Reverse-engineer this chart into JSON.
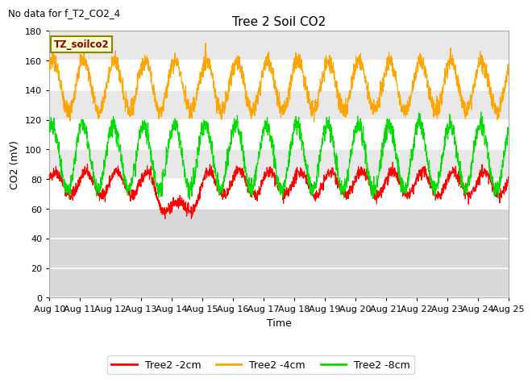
{
  "title": "Tree 2 Soil CO2",
  "no_data_text": "No data for f_T2_CO2_4",
  "tz_label": "TZ_soilco2",
  "xlabel": "Time",
  "ylabel": "CO2 (mV)",
  "ylim": [
    0,
    180
  ],
  "yticks": [
    0,
    20,
    40,
    60,
    80,
    100,
    120,
    140,
    160,
    180
  ],
  "x_labels": [
    "Aug 10",
    "Aug 11",
    "Aug 12",
    "Aug 13",
    "Aug 14",
    "Aug 15",
    "Aug 16",
    "Aug 17",
    "Aug 18",
    "Aug 19",
    "Aug 20",
    "Aug 21",
    "Aug 22",
    "Aug 23",
    "Aug 24",
    "Aug 25"
  ],
  "background_color": "#ffffff",
  "plot_bg_light": "#e8e8e8",
  "plot_bg_dark": "#d4d4d4",
  "series": [
    {
      "label": "Tree2 -2cm",
      "color": "#ff0000"
    },
    {
      "label": "Tree2 -4cm",
      "color": "#ffa500"
    },
    {
      "label": "Tree2 -8cm",
      "color": "#00dd00"
    }
  ],
  "red_base": 77,
  "red_amp": 8,
  "red_phase": 0.3,
  "orange_base": 143,
  "orange_amp": 17,
  "orange_phase": 0.8,
  "green_base": 95,
  "green_amp": 22,
  "green_phase": 1.0,
  "title_fontsize": 11,
  "tick_fontsize": 8,
  "label_fontsize": 9,
  "legend_fontsize": 9
}
